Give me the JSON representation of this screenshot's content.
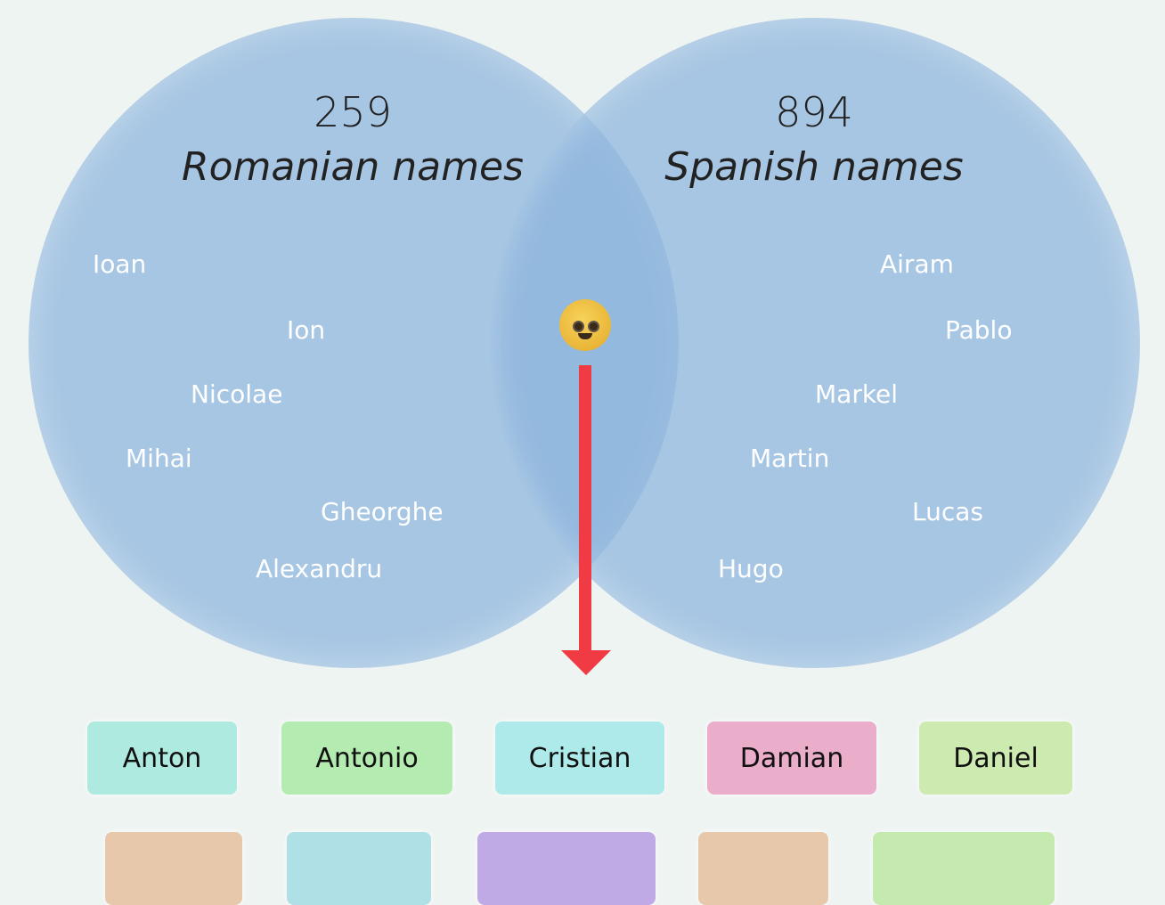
{
  "venn": {
    "left": {
      "count": "259",
      "label": "Romanian names",
      "names": [
        "Ioan",
        "Ion",
        "Nicolae",
        "Mihai",
        "Gheorghe",
        "Alexandru"
      ]
    },
    "right": {
      "count": "894",
      "label": "Spanish names",
      "names": [
        "Airam",
        "Pablo",
        "Markel",
        "Martin",
        "Lucas",
        "Hugo"
      ]
    },
    "center_icon": "baby-emoji",
    "arrow_color": "#f03a44"
  },
  "chips": [
    {
      "label": "Anton",
      "color": "#aeeae0"
    },
    {
      "label": "Antonio",
      "color": "#b3ebb0"
    },
    {
      "label": "Cristian",
      "color": "#aeeaea"
    },
    {
      "label": "Damian",
      "color": "#eaadca"
    },
    {
      "label": "Daniel",
      "color": "#cdeab0"
    }
  ],
  "chips_row2_colors": [
    "#e8c8aa",
    "#aee0e6",
    "#bfaae6",
    "#e8c8aa",
    "#c4eab0"
  ]
}
